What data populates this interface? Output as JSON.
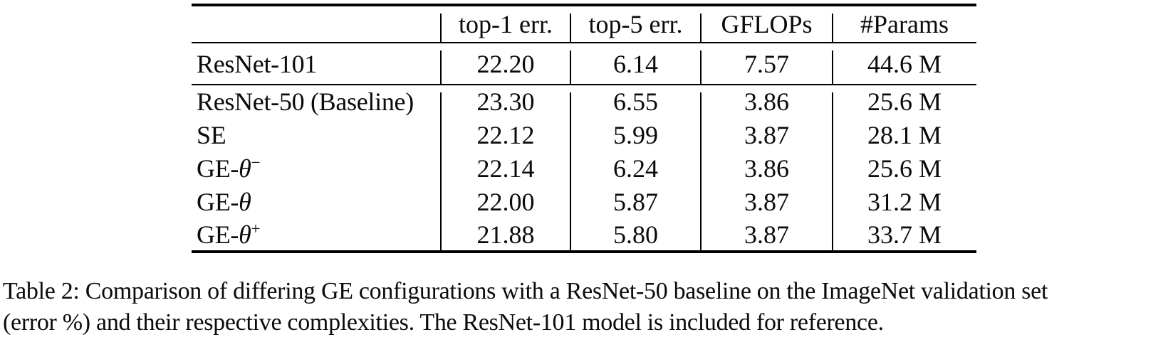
{
  "table": {
    "columns": [
      "",
      "top-1 err.",
      "top-5 err.",
      "GFLOPs",
      "#Params"
    ],
    "reference_rows": [
      {
        "model": "ResNet-101",
        "values": [
          "22.20",
          "6.14",
          "7.57",
          "44.6 M"
        ]
      }
    ],
    "rows": [
      {
        "model": "ResNet-50 (Baseline)",
        "values": [
          "23.30",
          "6.55",
          "3.86",
          "25.6 M"
        ]
      },
      {
        "model": "SE",
        "values": [
          "22.12",
          "5.99",
          "3.87",
          "28.1 M"
        ]
      },
      {
        "model": "GE-θ⁻",
        "values": [
          "22.14",
          "6.24",
          "3.86",
          "25.6 M"
        ]
      },
      {
        "model": "GE-θ",
        "values": [
          "22.00",
          "5.87",
          "3.87",
          "31.2 M"
        ]
      },
      {
        "model": "GE-θ⁺",
        "values": [
          "21.88",
          "5.80",
          "3.87",
          "33.7 M"
        ]
      }
    ],
    "ink_color": "#000000"
  },
  "caption": {
    "line1": "Table 2: Comparison of differing GE configurations with a ResNet-50 baseline on the ImageNet validation set",
    "line2": "(error %) and their respective complexities. The ResNet-101 model is included for reference."
  }
}
